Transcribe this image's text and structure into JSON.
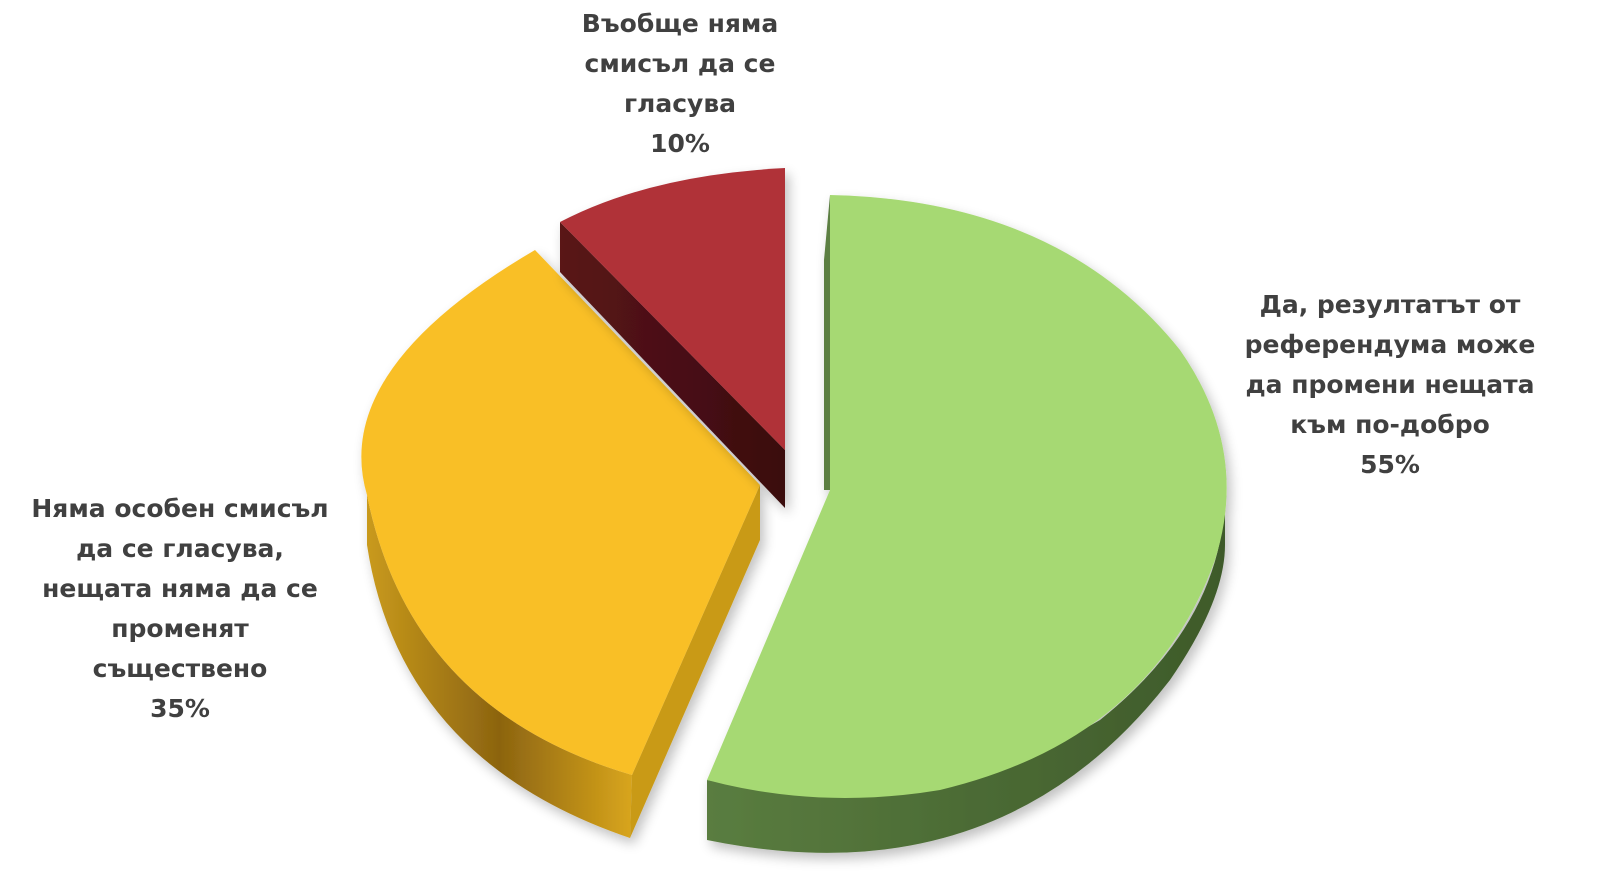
{
  "chart_data": {
    "type": "pie",
    "style": "3d-exploded",
    "title": "",
    "slices": [
      {
        "label_lines": [
          "Да, резултатът от",
          "референдума може",
          "да промени нещата",
          "към по-добро"
        ],
        "value": 55,
        "value_label": "55%",
        "color": "#a6d973",
        "side_color": "#4a6b34"
      },
      {
        "label_lines": [
          "Няма особен смисъл",
          "да се гласува,",
          "нещата няма да се",
          "променят",
          "съществено"
        ],
        "value": 35,
        "value_label": "35%",
        "color": "#f9bf26",
        "side_color": "#b98a14"
      },
      {
        "label_lines": [
          "Въобще няма",
          "смисъл да се",
          "гласува"
        ],
        "value": 10,
        "value_label": "10%",
        "color": "#b03038",
        "side_color": "#4a1014"
      }
    ],
    "legend": "none",
    "label_placement": "outside"
  }
}
